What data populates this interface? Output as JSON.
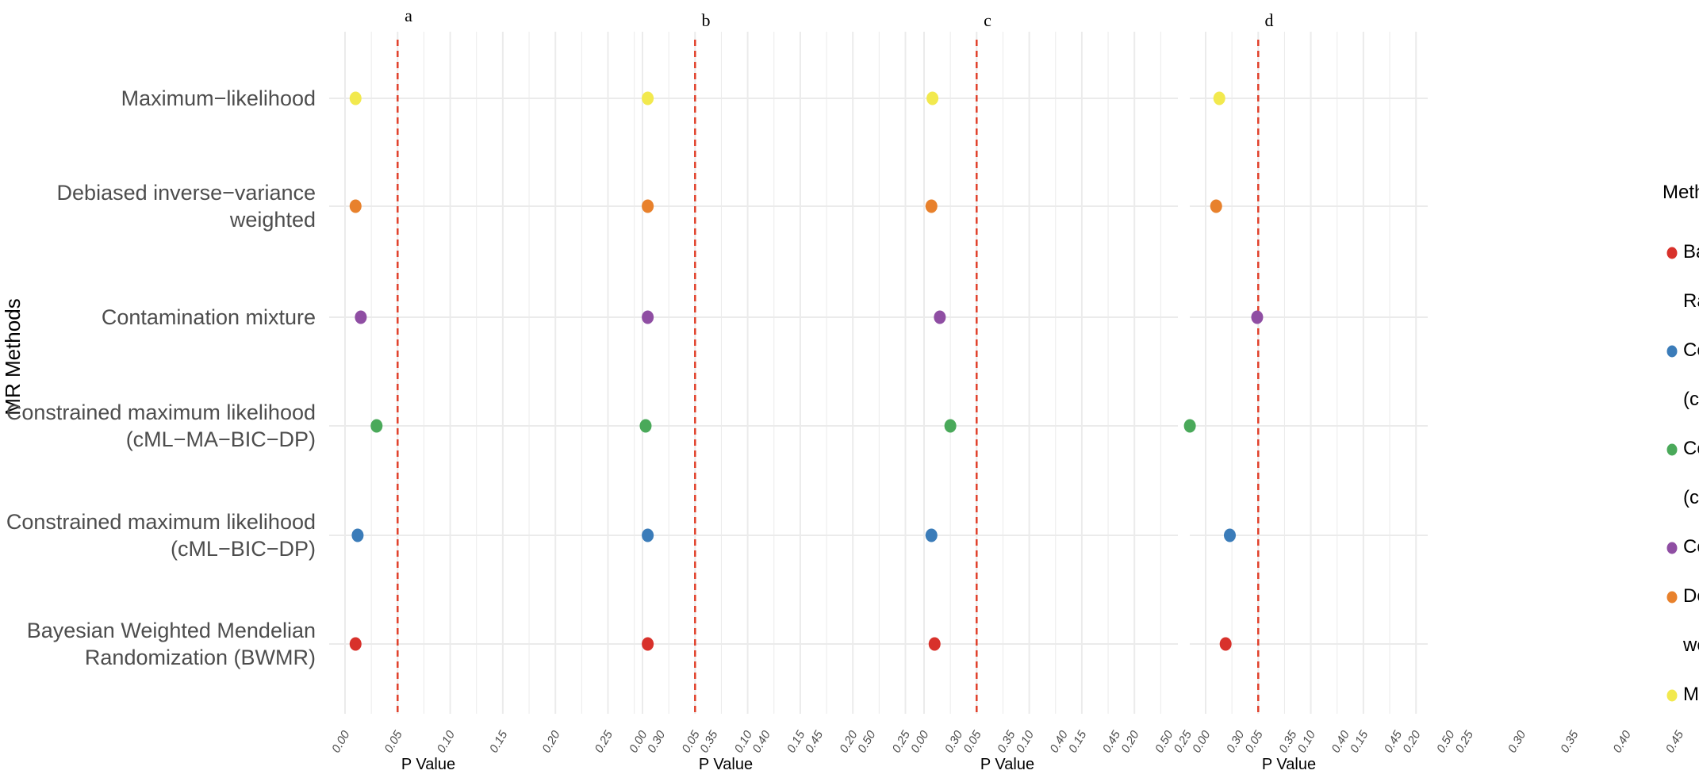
{
  "chart_data": {
    "type": "scatter",
    "xlabel": "P Value",
    "ylabel": "MR Methods",
    "xlim": [
      0,
      0.5
    ],
    "x_ticks": [
      "0.00",
      "0.05",
      "0.10",
      "0.15",
      "0.20",
      "0.25",
      "0.30",
      "0.35",
      "0.40",
      "0.45",
      "0.50"
    ],
    "reference_line": 0.05,
    "categories": [
      "Maximum−likelihood",
      "Debiased inverse−variance weighted",
      "Contamination mixture",
      "Constrained maximum likelihood (cML−MA−BIC−DP)",
      "Constrained maximum likelihood (cML−BIC−DP)",
      "Bayesian Weighted Mendelian Randomization (BWMR)"
    ],
    "category_display_lines": [
      [
        "Maximum−likelihood"
      ],
      [
        "Debiased inverse−variance",
        "weighted"
      ],
      [
        "Contamination mixture"
      ],
      [
        "Constrained maximum likelihood",
        "(cML−MA−BIC−DP)"
      ],
      [
        "Constrained maximum likelihood",
        "(cML−BIC−DP)"
      ],
      [
        "Bayesian Weighted Mendelian",
        "Randomization (BWMR)"
      ]
    ],
    "point_colors": [
      "#f2e94e",
      "#e8812c",
      "#8f4ea3",
      "#4aa95a",
      "#3b7cb9",
      "#d8312b"
    ],
    "panels": [
      {
        "label": "a",
        "values": [
          0.01,
          0.01,
          0.015,
          0.03,
          0.012,
          0.01
        ]
      },
      {
        "label": "b",
        "values": [
          0.005,
          0.005,
          0.005,
          0.003,
          0.005,
          0.005
        ]
      },
      {
        "label": "c",
        "values": [
          0.008,
          0.007,
          0.015,
          0.025,
          0.007,
          0.01
        ]
      },
      {
        "label": "d",
        "values": [
          0.013,
          0.01,
          0.049,
          -0.015,
          0.023,
          0.019
        ]
      }
    ],
    "legend": {
      "title": "Method",
      "placement": "right",
      "items": [
        {
          "lines": [
            "Bayesian Weighted Mendelian",
            "Randomization(BWMR)"
          ],
          "color": "#d8312b"
        },
        {
          "lines": [
            "Constrained maximum likelihood",
            "(cML−BIC−DP)"
          ],
          "color": "#3b7cb9"
        },
        {
          "lines": [
            "Constrained maximum likelihood",
            "(cML−MA−BIC−DP)"
          ],
          "color": "#4aa95a"
        },
        {
          "lines": [
            "Contamination mixture"
          ],
          "color": "#8f4ea3"
        },
        {
          "lines": [
            "Debiased inverse−variance",
            "weighted"
          ],
          "color": "#e8812c"
        },
        {
          "lines": [
            "Maximum−likelihood"
          ],
          "color": "#f2e94e"
        }
      ]
    },
    "grid": true,
    "reference_line_color": "#e0402a",
    "grid_color": "#ebebeb"
  }
}
